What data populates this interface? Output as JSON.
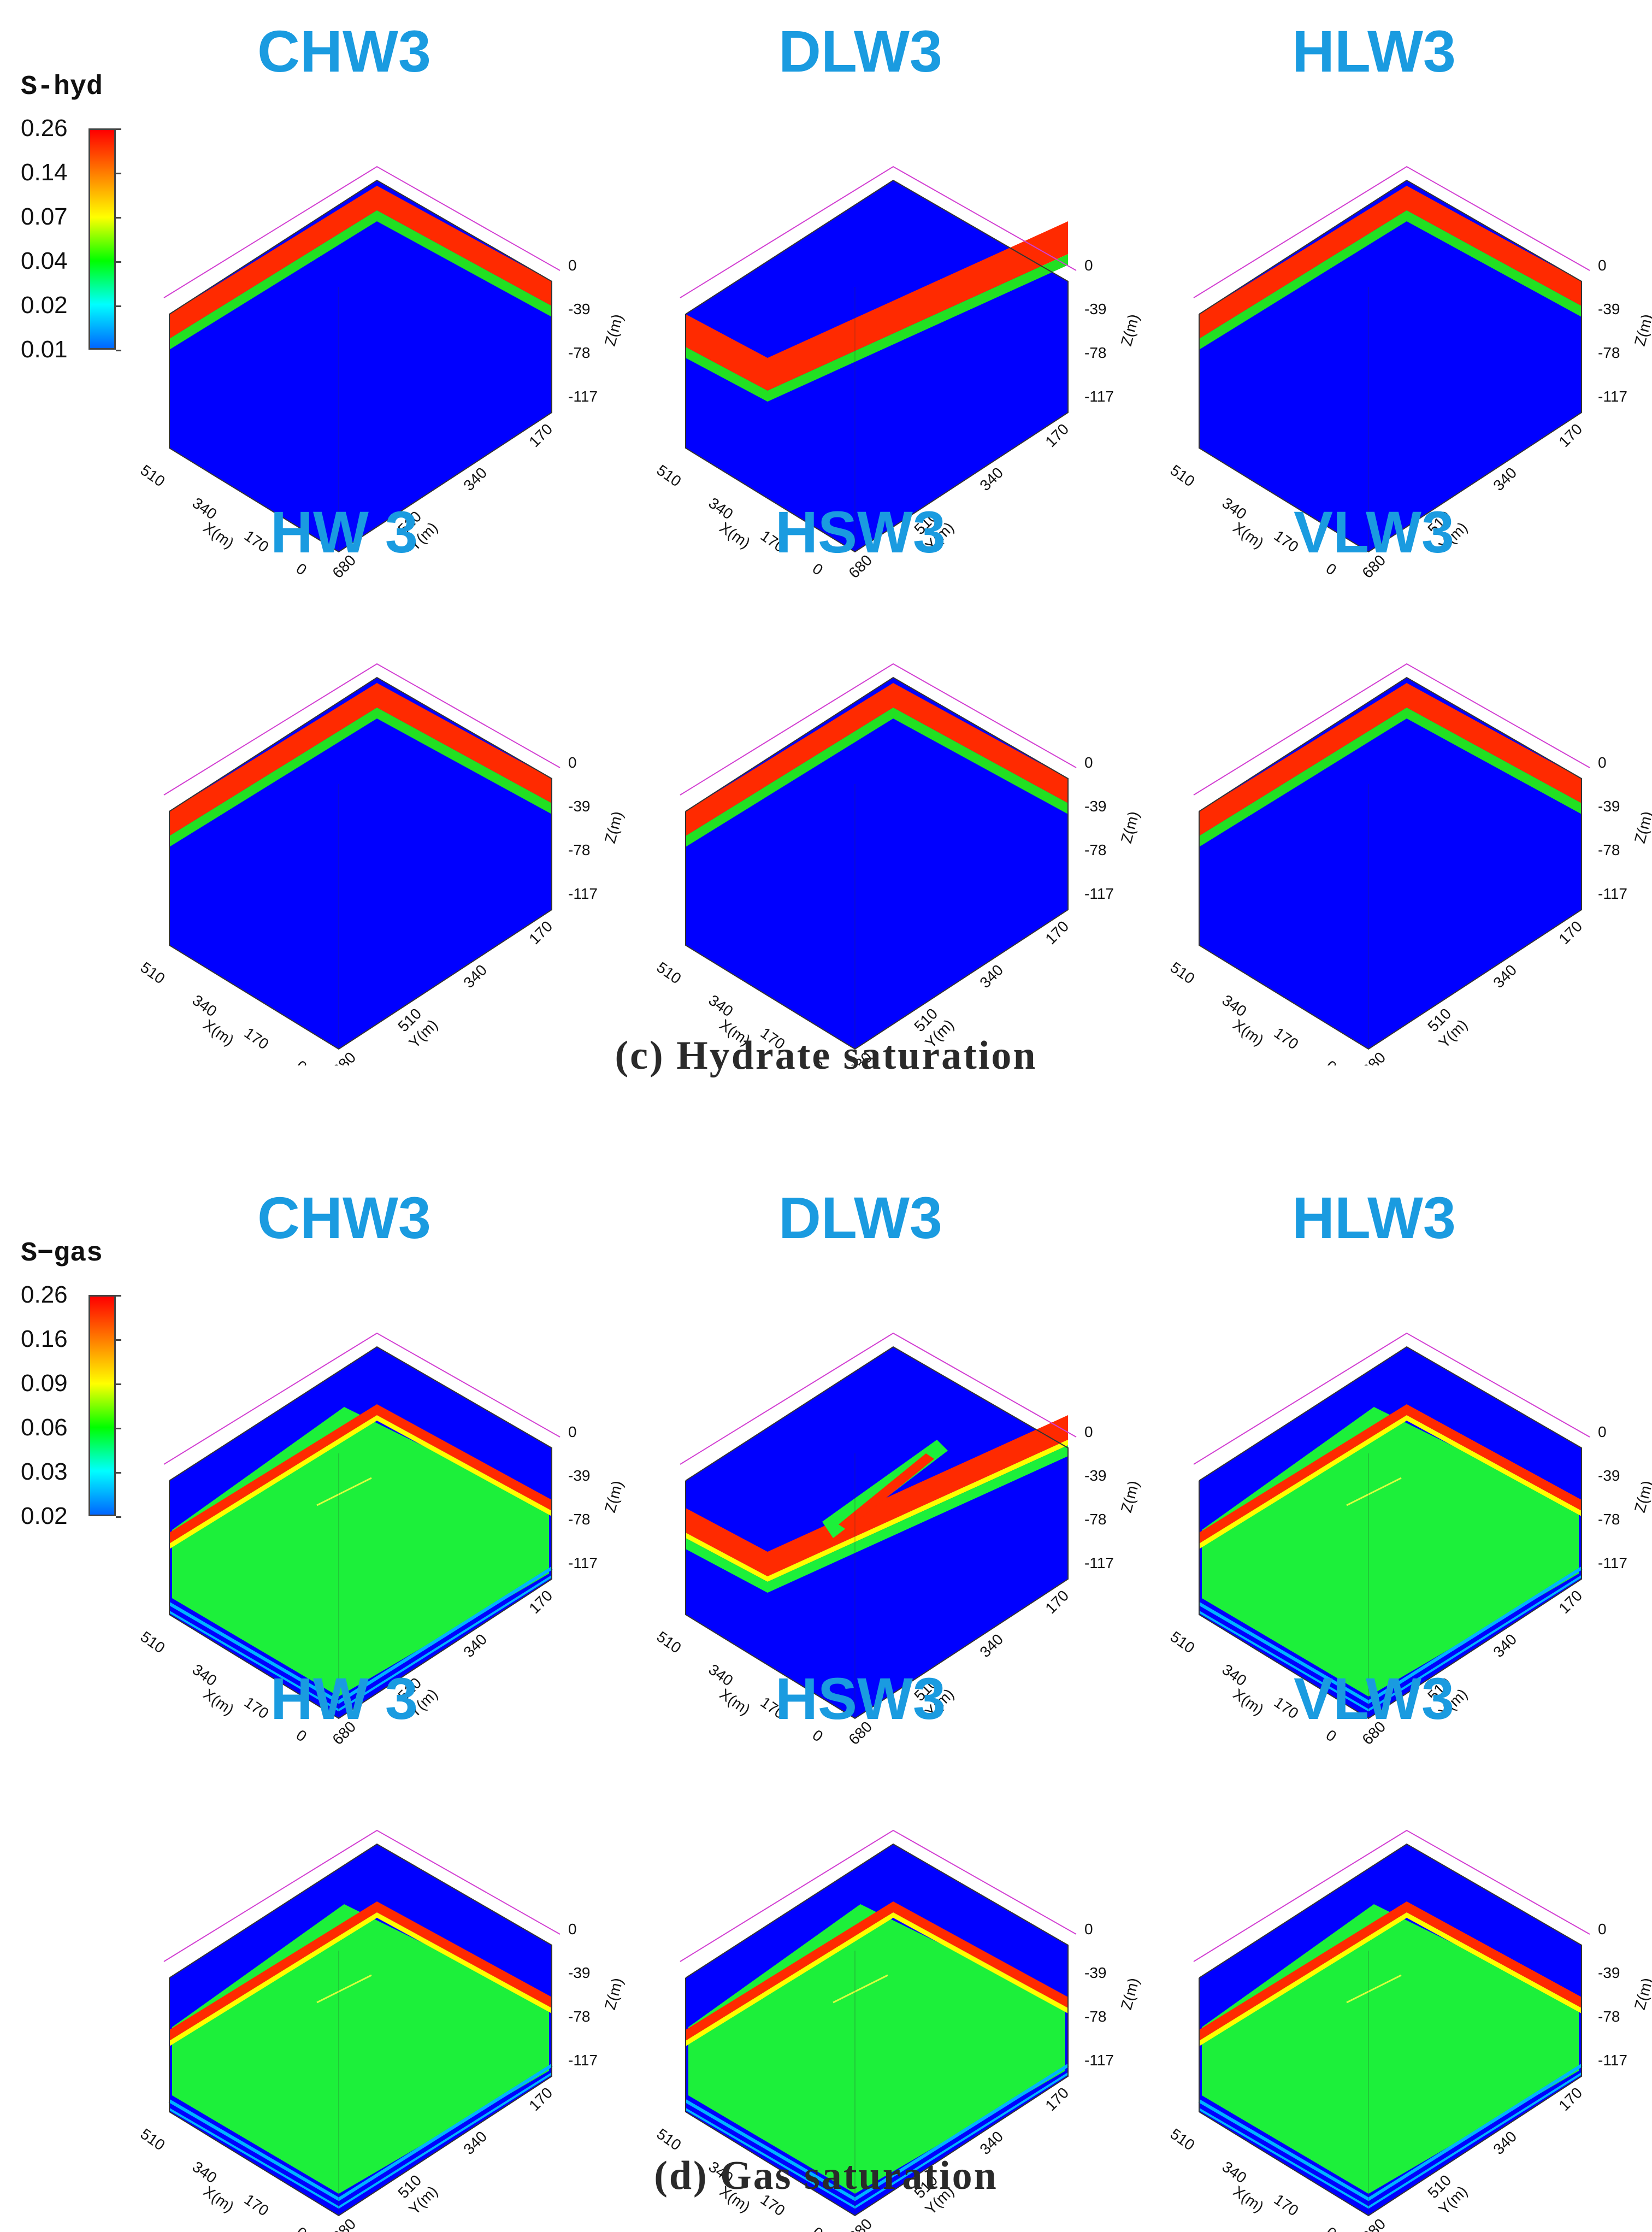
{
  "sections": [
    {
      "caption": "(c) Hydrate saturation",
      "colorbar": {
        "title": "S-hyd",
        "ticks": [
          "0.26",
          "0.14",
          "0.07",
          "0.04",
          "0.02",
          "0.01"
        ],
        "colors": [
          "#ff0000",
          "#ff7f00",
          "#ffff00",
          "#00ff00",
          "#00ffff",
          "#0066ff"
        ]
      },
      "panels": [
        {
          "title": "CHW3",
          "variant": "peak-center"
        },
        {
          "title": "DLW3",
          "variant": "valley"
        },
        {
          "title": "HLW3",
          "variant": "peak-center"
        },
        {
          "title": "HW 3",
          "variant": "peak-center"
        },
        {
          "title": "HSW3",
          "variant": "peak-center"
        },
        {
          "title": "VLW3",
          "variant": "peak-center"
        }
      ]
    },
    {
      "caption": "(d) Gas saturation",
      "colorbar": {
        "title": "S−gas",
        "ticks": [
          "0.26",
          "0.16",
          "0.09",
          "0.06",
          "0.03",
          "0.02"
        ],
        "colors": [
          "#ff0000",
          "#ff7f00",
          "#ffff00",
          "#00ff00",
          "#00ffff",
          "#0066ff"
        ]
      },
      "panels": [
        {
          "title": "CHW3",
          "variant": "gas"
        },
        {
          "title": "DLW3",
          "variant": "gas-valley"
        },
        {
          "title": "HLW3",
          "variant": "gas"
        },
        {
          "title": "HW 3",
          "variant": "gas"
        },
        {
          "title": "HSW3",
          "variant": "gas"
        },
        {
          "title": "VLW3",
          "variant": "gas"
        }
      ]
    }
  ],
  "axes": {
    "x_label": "X(m)",
    "y_label": "Y(m)",
    "z_label": "Z(m)",
    "x_ticks": [
      "510",
      "340",
      "170",
      "0"
    ],
    "y_ticks": [
      "680",
      "510",
      "340",
      "170"
    ],
    "z_ticks": [
      "0",
      "-39",
      "-78",
      "-117"
    ]
  },
  "colors": {
    "title": "#1a9be0",
    "background_blue": "#0000ff",
    "hydrate_red": "#ff2a00",
    "hydrate_green": "#22e022",
    "gas_green": "#1cf03a",
    "gas_blue_band": "#00b4ff"
  }
}
